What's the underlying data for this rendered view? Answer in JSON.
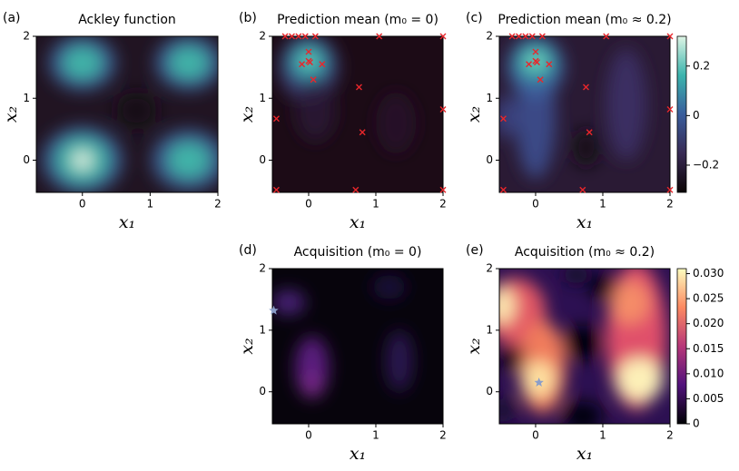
{
  "chart_data": [
    {
      "type": "heatmap",
      "label": "(a)",
      "title": "Ackley function",
      "xlabel": "x₁",
      "ylabel": "x₂",
      "colormap": "mako",
      "xlim": [
        -0.68,
        2.0
      ],
      "ylim": [
        -0.52,
        2.0
      ],
      "xticks": [
        0,
        1,
        2
      ],
      "yticks": [
        0,
        1,
        2
      ]
    },
    {
      "type": "heatmap",
      "label": "(b)",
      "title": "Prediction mean (m₀ = 0)",
      "xlabel": "x₁",
      "ylabel": "x₂",
      "colormap": "mako",
      "xlim": [
        -0.54,
        2.0
      ],
      "ylim": [
        -0.52,
        2.0
      ],
      "xticks": [
        0,
        1,
        2
      ],
      "yticks": [
        0,
        1,
        2
      ],
      "points": {
        "color": "#e8262b",
        "x": [
          -0.35,
          -0.25,
          -0.15,
          -0.05,
          0.1,
          1.05,
          2.0,
          0.0,
          0.0,
          0.02,
          -0.1,
          0.2,
          0.07,
          0.75,
          0.8,
          -0.48,
          2.0,
          0.7,
          -0.48,
          2.0
        ],
        "y": [
          2.0,
          2.0,
          2.0,
          2.0,
          2.0,
          2.0,
          2.0,
          1.75,
          1.6,
          1.58,
          1.55,
          1.55,
          1.3,
          1.18,
          0.45,
          0.67,
          0.82,
          -0.48,
          -0.48,
          -0.48
        ]
      }
    },
    {
      "type": "heatmap",
      "label": "(c)",
      "title": "Prediction mean (m₀ ≈ 0.2)",
      "xlabel": "x₁",
      "ylabel": "x₂",
      "colormap": "mako",
      "xlim": [
        -0.54,
        2.0
      ],
      "ylim": [
        -0.52,
        2.0
      ],
      "xticks": [
        0,
        1,
        2
      ],
      "yticks": [
        0,
        1,
        2
      ],
      "points": {
        "color": "#e8262b",
        "x": [
          -0.35,
          -0.25,
          -0.15,
          -0.05,
          0.1,
          1.05,
          2.0,
          0.0,
          0.0,
          0.02,
          -0.1,
          0.2,
          0.07,
          0.75,
          0.8,
          -0.48,
          2.0,
          0.7,
          -0.48,
          2.0
        ],
        "y": [
          2.0,
          2.0,
          2.0,
          2.0,
          2.0,
          2.0,
          2.0,
          1.75,
          1.6,
          1.58,
          1.55,
          1.55,
          1.3,
          1.18,
          0.45,
          0.67,
          0.82,
          -0.48,
          -0.48,
          -0.48
        ]
      },
      "colorbar": {
        "clim": [
          -0.31,
          0.32
        ],
        "ticks": [
          0.2,
          0,
          {
            "value": -0.2,
            "label": "−0.2"
          }
        ]
      }
    },
    {
      "type": "heatmap",
      "label": "(d)",
      "title": "Acquisition (m₀ = 0)",
      "xlabel": "x₁",
      "ylabel": "x₂",
      "colormap": "magma",
      "xlim": [
        -0.54,
        2.0
      ],
      "ylim": [
        -0.52,
        2.0
      ],
      "xticks": [
        0,
        1,
        2
      ],
      "yticks": [
        0,
        1,
        2
      ],
      "star": {
        "x": -0.52,
        "y": 1.32,
        "color": "#8b9ec9"
      }
    },
    {
      "type": "heatmap",
      "label": "(e)",
      "title": "Acquisition (m₀ ≈ 0.2)",
      "xlabel": "x₁",
      "ylabel": "x₂",
      "colormap": "magma",
      "xlim": [
        -0.54,
        2.0
      ],
      "ylim": [
        -0.52,
        2.0
      ],
      "xticks": [
        0,
        1,
        2
      ],
      "yticks": [
        0,
        1,
        2
      ],
      "star": {
        "x": 0.05,
        "y": 0.15,
        "color": "#8b9ec9"
      },
      "colorbar": {
        "clim": [
          0,
          0.031
        ],
        "ticks": [
          0,
          {
            "value": 0.005,
            "label": "0.005"
          },
          {
            "value": 0.01,
            "label": "0.010"
          },
          {
            "value": 0.015,
            "label": "0.015"
          },
          {
            "value": 0.02,
            "label": "0.020"
          },
          {
            "value": 0.025,
            "label": "0.025"
          },
          {
            "value": 0.03,
            "label": "0.030"
          }
        ]
      }
    }
  ]
}
